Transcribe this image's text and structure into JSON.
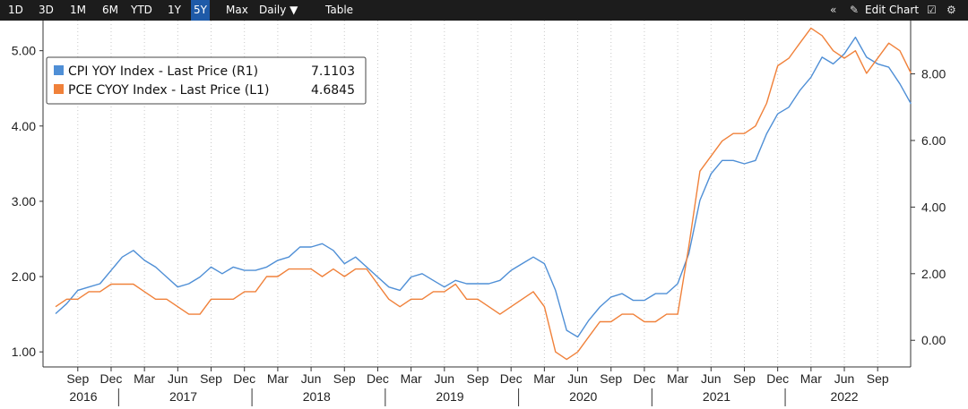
{
  "toolbar": {
    "ranges": [
      "1D",
      "3D",
      "1M",
      "6M",
      "YTD",
      "1Y",
      "5Y",
      "Max"
    ],
    "active_range": "5Y",
    "frequency": "Daily ▼",
    "table": "Table",
    "collapse_icon": "double-chevron-left-icon",
    "edit_chart": "Edit Chart",
    "edit_icon": "pencil-icon",
    "annotate_icon": "annotate-icon",
    "settings_icon": "gear-icon"
  },
  "chart_data": {
    "type": "line",
    "title": "",
    "legend": {
      "placement": "top-left",
      "entries": [
        {
          "label": "CPI YOY Index - Last Price (R1)",
          "value": "7.1103",
          "color": "#4f8fd6"
        },
        {
          "label": "PCE CYOY Index - Last Price (L1)",
          "value": "4.6845",
          "color": "#f0813a"
        }
      ]
    },
    "x_month_labels": [
      "Sep",
      "Dec",
      "Mar",
      "Jun",
      "Sep",
      "Dec",
      "Mar",
      "Jun",
      "Sep",
      "Dec",
      "Mar",
      "Jun",
      "Sep",
      "Dec",
      "Mar",
      "Jun",
      "Sep",
      "Dec",
      "Mar",
      "Jun",
      "Sep",
      "Dec",
      "Mar",
      "Jun",
      "Sep"
    ],
    "x_years": [
      "2016",
      "2017",
      "2018",
      "2019",
      "2020",
      "2021",
      "2022"
    ],
    "x_range": [
      "2016-07",
      "2022-11"
    ],
    "left_axis": {
      "range": [
        0.8,
        5.4
      ],
      "ticks": [
        "1.00",
        "2.00",
        "3.00",
        "4.00",
        "5.00"
      ]
    },
    "right_axis": {
      "range": [
        -0.8,
        9.6
      ],
      "ticks": [
        "0.00",
        "2.00",
        "4.00",
        "6.00",
        "8.00"
      ]
    },
    "grid": {
      "vertical": "dotted",
      "horizontal": "none"
    },
    "series": [
      {
        "name": "CPI YOY Index - Last Price (R1)",
        "axis": "right",
        "color": "#4f8fd6",
        "start": "2016-07",
        "values": [
          0.8,
          1.1,
          1.5,
          1.6,
          1.7,
          2.1,
          2.5,
          2.7,
          2.4,
          2.2,
          1.9,
          1.6,
          1.7,
          1.9,
          2.2,
          2.0,
          2.2,
          2.1,
          2.1,
          2.2,
          2.4,
          2.5,
          2.8,
          2.8,
          2.9,
          2.7,
          2.3,
          2.5,
          2.2,
          1.9,
          1.6,
          1.5,
          1.9,
          2.0,
          1.8,
          1.6,
          1.8,
          1.7,
          1.7,
          1.7,
          1.8,
          2.1,
          2.3,
          2.5,
          2.3,
          1.5,
          0.3,
          0.1,
          0.6,
          1.0,
          1.3,
          1.4,
          1.2,
          1.2,
          1.4,
          1.4,
          1.7,
          2.6,
          4.2,
          5.0,
          5.4,
          5.4,
          5.3,
          5.4,
          6.2,
          6.8,
          7.0,
          7.5,
          7.9,
          8.5,
          8.3,
          8.6,
          9.1,
          8.5,
          8.3,
          8.2,
          7.7,
          7.1
        ]
      },
      {
        "name": "PCE CYOY Index - Last Price (L1)",
        "axis": "left",
        "color": "#f0813a",
        "start": "2016-07",
        "values": [
          1.6,
          1.7,
          1.7,
          1.8,
          1.8,
          1.9,
          1.9,
          1.9,
          1.8,
          1.7,
          1.7,
          1.6,
          1.5,
          1.5,
          1.7,
          1.7,
          1.7,
          1.8,
          1.8,
          2.0,
          2.0,
          2.1,
          2.1,
          2.1,
          2.0,
          2.1,
          2.0,
          2.1,
          2.1,
          1.9,
          1.7,
          1.6,
          1.7,
          1.7,
          1.8,
          1.8,
          1.9,
          1.7,
          1.7,
          1.6,
          1.5,
          1.6,
          1.7,
          1.8,
          1.6,
          1.0,
          0.9,
          1.0,
          1.2,
          1.4,
          1.4,
          1.5,
          1.5,
          1.4,
          1.4,
          1.5,
          1.5,
          2.4,
          3.4,
          3.6,
          3.8,
          3.9,
          3.9,
          4.0,
          4.3,
          4.8,
          4.9,
          5.1,
          5.3,
          5.2,
          5.0,
          4.9,
          5.0,
          4.7,
          4.9,
          5.1,
          5.0,
          4.7
        ]
      }
    ]
  }
}
